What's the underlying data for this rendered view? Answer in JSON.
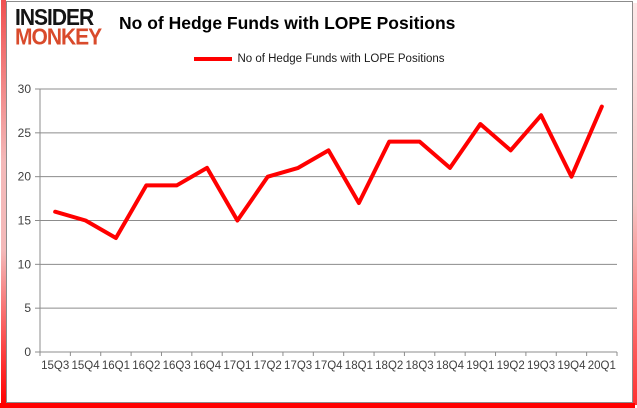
{
  "logo": {
    "line1": "INSIDER",
    "line2": "MONKEY"
  },
  "header": {
    "title": "No of Hedge Funds with LOPE Positions"
  },
  "legend": {
    "label": "No of Hedge Funds with LOPE Positions"
  },
  "colors": {
    "line": "#FF0000",
    "grid": "#8c8c8c",
    "axis_line": "#8c8c8c",
    "axis_text": "#3f3f3f",
    "logo_black": "#141414",
    "logo_red": "#D94A2B",
    "frame_glow": "#FF0000"
  },
  "chart_data": {
    "type": "line",
    "title": "No of Hedge Funds with LOPE Positions",
    "legend": "No of Hedge Funds with LOPE Positions",
    "categories": [
      "15Q3",
      "15Q4",
      "16Q1",
      "16Q2",
      "16Q3",
      "16Q4",
      "17Q1",
      "17Q2",
      "17Q3",
      "17Q4",
      "18Q1",
      "18Q2",
      "18Q3",
      "18Q4",
      "19Q1",
      "19Q2",
      "19Q3",
      "19Q4",
      "20Q1"
    ],
    "series": [
      {
        "name": "No of Hedge Funds with LOPE Positions",
        "color": "#FF0000",
        "values": [
          16,
          15,
          13,
          19,
          19,
          21,
          15,
          20,
          21,
          23,
          17,
          24,
          24,
          21,
          26,
          23,
          27,
          20,
          28
        ]
      }
    ],
    "xlabel": "",
    "ylabel": "",
    "ylim": [
      0,
      30
    ],
    "yticks": [
      0,
      5,
      10,
      15,
      20,
      25,
      30
    ],
    "grid": "horizontal",
    "legend_position": "top-center"
  }
}
